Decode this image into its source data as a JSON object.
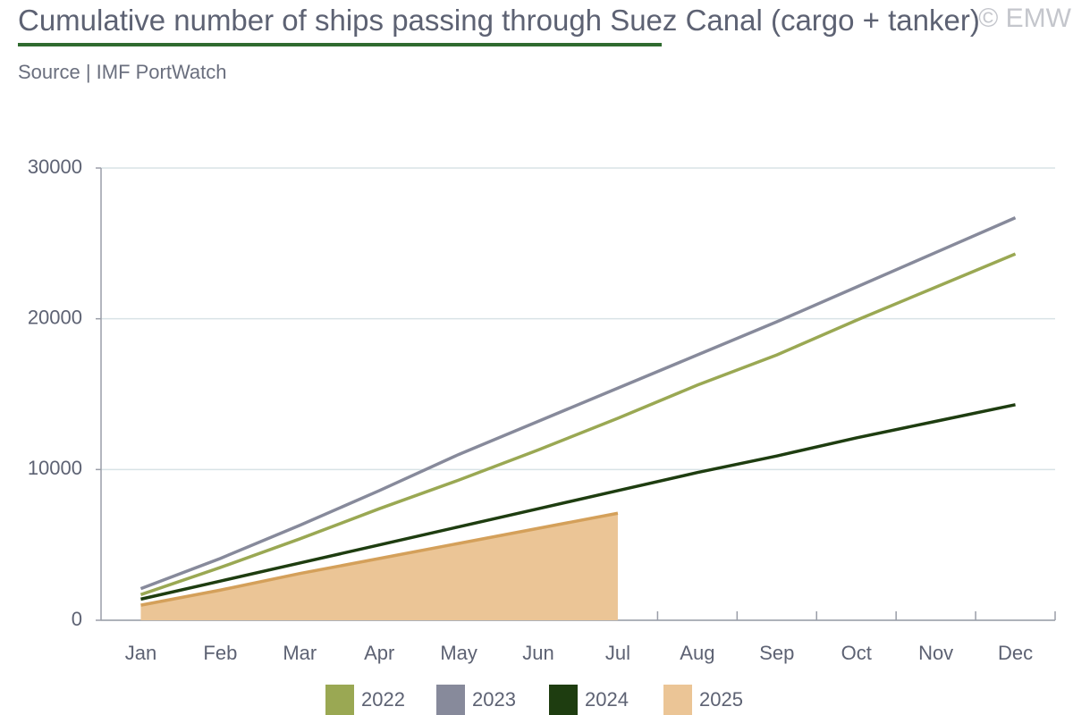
{
  "chart_data": {
    "type": "line",
    "title": "Cumulative number of ships passing through Suez Canal (cargo + tanker)",
    "subtitle": "Source | IMF PortWatch",
    "credit": "© EMW",
    "categories": [
      "Jan",
      "Feb",
      "Mar",
      "Apr",
      "May",
      "Jun",
      "Jul",
      "Aug",
      "Sep",
      "Oct",
      "Nov",
      "Dec"
    ],
    "series": [
      {
        "name": "2022",
        "color": "#9aa853",
        "values": [
          1700,
          3500,
          5400,
          7400,
          9300,
          11300,
          13400,
          15600,
          17600,
          19900,
          22100,
          24300
        ]
      },
      {
        "name": "2023",
        "color": "#878a9b",
        "values": [
          2100,
          4100,
          6300,
          8600,
          11000,
          13200,
          15400,
          17600,
          19800,
          22100,
          24400,
          26700
        ]
      },
      {
        "name": "2024",
        "color": "#1e3d10",
        "values": [
          1400,
          2600,
          3800,
          5000,
          6200,
          7400,
          8600,
          9800,
          10900,
          12100,
          13200,
          14300
        ]
      },
      {
        "name": "2025",
        "color": "#d4a05a",
        "fill": "#ebc596",
        "area": true,
        "values": [
          1000,
          2000,
          3100,
          4100,
          5100,
          6100,
          7100,
          null,
          null,
          null,
          null,
          null
        ]
      }
    ],
    "ylim": [
      0,
      30000
    ],
    "yticks": [
      0,
      10000,
      20000,
      30000
    ],
    "grid": true
  }
}
